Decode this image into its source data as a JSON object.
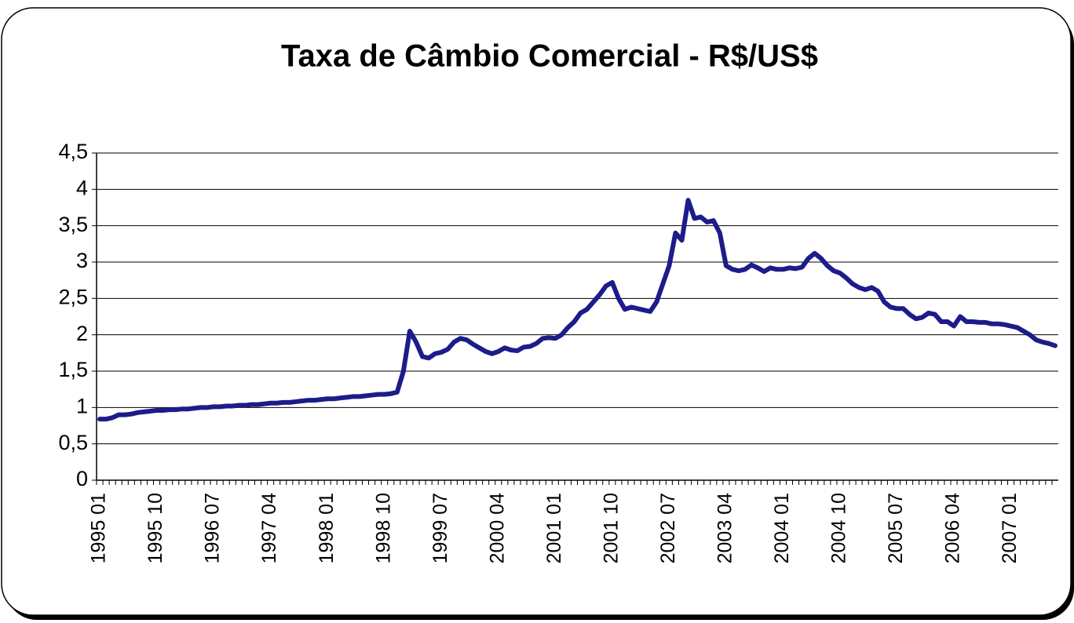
{
  "chart_data": {
    "type": "line",
    "title": "Taxa de Câmbio Comercial - R$/US$",
    "categories": [
      "1995 01",
      null,
      null,
      null,
      null,
      null,
      null,
      null,
      null,
      "1995 10",
      null,
      null,
      null,
      null,
      null,
      null,
      null,
      null,
      "1996 07",
      null,
      null,
      null,
      null,
      null,
      null,
      null,
      null,
      "1997 04",
      null,
      null,
      null,
      null,
      null,
      null,
      null,
      null,
      "1998 01",
      null,
      null,
      null,
      null,
      null,
      null,
      null,
      null,
      "1998 10",
      null,
      null,
      null,
      null,
      null,
      null,
      null,
      null,
      "1999 07",
      null,
      null,
      null,
      null,
      null,
      null,
      null,
      null,
      "2000 04",
      null,
      null,
      null,
      null,
      null,
      null,
      null,
      null,
      "2001 01",
      null,
      null,
      null,
      null,
      null,
      null,
      null,
      null,
      "2001 10",
      null,
      null,
      null,
      null,
      null,
      null,
      null,
      null,
      "2002 07",
      null,
      null,
      null,
      null,
      null,
      null,
      null,
      null,
      "2003 04",
      null,
      null,
      null,
      null,
      null,
      null,
      null,
      null,
      "2004 01",
      null,
      null,
      null,
      null,
      null,
      null,
      null,
      null,
      "2004 10",
      null,
      null,
      null,
      null,
      null,
      null,
      null,
      null,
      "2005 07",
      null,
      null,
      null,
      null,
      null,
      null,
      null,
      null,
      "2006 04",
      null,
      null,
      null,
      null,
      null,
      null,
      null,
      null,
      "2007 01",
      null,
      null,
      null,
      null,
      null,
      null,
      null
    ],
    "series": [
      {
        "name": "R$/US$",
        "color": "#1c1c8a",
        "values": [
          0.84,
          0.84,
          0.86,
          0.9,
          0.9,
          0.91,
          0.93,
          0.94,
          0.95,
          0.96,
          0.96,
          0.97,
          0.97,
          0.98,
          0.98,
          0.99,
          1.0,
          1.0,
          1.01,
          1.01,
          1.02,
          1.02,
          1.03,
          1.03,
          1.04,
          1.04,
          1.05,
          1.06,
          1.06,
          1.07,
          1.07,
          1.08,
          1.09,
          1.1,
          1.1,
          1.11,
          1.12,
          1.12,
          1.13,
          1.14,
          1.15,
          1.15,
          1.16,
          1.17,
          1.18,
          1.18,
          1.19,
          1.21,
          1.5,
          2.05,
          1.9,
          1.7,
          1.68,
          1.74,
          1.76,
          1.8,
          1.9,
          1.95,
          1.93,
          1.87,
          1.82,
          1.77,
          1.74,
          1.77,
          1.82,
          1.79,
          1.78,
          1.83,
          1.84,
          1.88,
          1.95,
          1.96,
          1.95,
          2.0,
          2.1,
          2.18,
          2.3,
          2.35,
          2.45,
          2.55,
          2.67,
          2.72,
          2.5,
          2.35,
          2.38,
          2.36,
          2.34,
          2.32,
          2.45,
          2.7,
          2.95,
          3.4,
          3.3,
          3.85,
          3.6,
          3.62,
          3.55,
          3.57,
          3.4,
          2.95,
          2.9,
          2.88,
          2.9,
          2.96,
          2.92,
          2.87,
          2.92,
          2.9,
          2.9,
          2.92,
          2.91,
          2.93,
          3.05,
          3.12,
          3.05,
          2.95,
          2.88,
          2.85,
          2.78,
          2.7,
          2.65,
          2.62,
          2.65,
          2.6,
          2.45,
          2.38,
          2.36,
          2.36,
          2.28,
          2.22,
          2.24,
          2.3,
          2.28,
          2.18,
          2.18,
          2.12,
          2.25,
          2.18,
          2.18,
          2.17,
          2.17,
          2.15,
          2.15,
          2.14,
          2.12,
          2.1,
          2.05,
          2.0,
          1.93,
          1.9,
          1.88,
          1.85
        ]
      }
    ],
    "ylim": [
      0,
      4.5
    ],
    "yticks": [
      0,
      {
        "value": 0.5,
        "label": "0,5"
      },
      1,
      {
        "value": 1.5,
        "label": "1,5"
      },
      2,
      {
        "value": 2.5,
        "label": "2,5"
      },
      3,
      {
        "value": 3.5,
        "label": "3,5"
      },
      4,
      {
        "value": 4.5,
        "label": "4,5"
      }
    ],
    "grid": true
  }
}
